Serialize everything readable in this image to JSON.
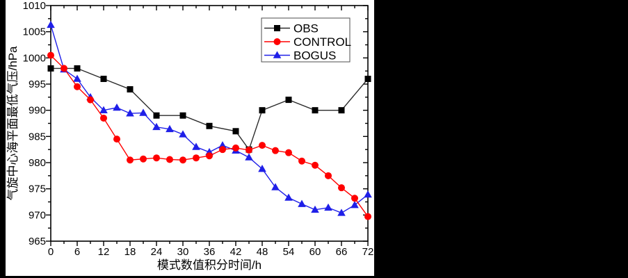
{
  "chart_data": {
    "type": "line",
    "title": "",
    "xlabel": "模式数值积分时间/h",
    "ylabel": "气旋中心海平面最低气压/hPa",
    "xlim": [
      0,
      72
    ],
    "ylim": [
      965,
      1010
    ],
    "x_major_step": 6,
    "x_minor_step": 3,
    "y_major_step": 5,
    "y_minor_step": 2.5,
    "grid": false,
    "legend_position": "top-center-inside",
    "legend_entries": [
      "OBS",
      "CONTROL",
      "BOGUS"
    ],
    "series": [
      {
        "name": "OBS",
        "marker": "square",
        "color": "#000000",
        "line_color": "#2b2b2b",
        "z": 1,
        "points": [
          [
            0,
            998
          ],
          [
            6,
            998
          ],
          [
            12,
            996
          ],
          [
            18,
            994
          ],
          [
            24,
            989
          ],
          [
            30,
            989
          ],
          [
            36,
            987
          ],
          [
            42,
            986
          ],
          [
            45,
            982.5
          ],
          [
            48,
            990
          ],
          [
            54,
            992
          ],
          [
            60,
            990
          ],
          [
            66,
            990
          ],
          [
            72,
            996
          ]
        ]
      },
      {
        "name": "CONTROL",
        "marker": "circle",
        "color": "#ff0000",
        "line_color": "#ff0000",
        "z": 3,
        "points": [
          [
            0,
            1000.5
          ],
          [
            3,
            998
          ],
          [
            6,
            994.5
          ],
          [
            9,
            992
          ],
          [
            12,
            988.5
          ],
          [
            15,
            984.5
          ],
          [
            18,
            980.5
          ],
          [
            21,
            980.7
          ],
          [
            24,
            980.9
          ],
          [
            27,
            980.6
          ],
          [
            30,
            980.5
          ],
          [
            33,
            980.9
          ],
          [
            36,
            981.3
          ],
          [
            39,
            982.5
          ],
          [
            42,
            982.8
          ],
          [
            45,
            982.4
          ],
          [
            48,
            983.3
          ],
          [
            51,
            982.3
          ],
          [
            54,
            981.9
          ],
          [
            57,
            980.3
          ],
          [
            60,
            979.5
          ],
          [
            63,
            977.5
          ],
          [
            66,
            975.2
          ],
          [
            69,
            973.2
          ],
          [
            72,
            969.7
          ]
        ]
      },
      {
        "name": "BOGUS",
        "marker": "triangle",
        "color": "#1f1fe8",
        "line_color": "#1f1fe8",
        "z": 2,
        "points": [
          [
            0,
            1006.3
          ],
          [
            3,
            997.8
          ],
          [
            6,
            996
          ],
          [
            9,
            992.5
          ],
          [
            12,
            990
          ],
          [
            15,
            990.5
          ],
          [
            18,
            989.4
          ],
          [
            21,
            989.5
          ],
          [
            24,
            986.8
          ],
          [
            27,
            986.4
          ],
          [
            30,
            985.4
          ],
          [
            33,
            983
          ],
          [
            36,
            982
          ],
          [
            39,
            983.3
          ],
          [
            42,
            982.3
          ],
          [
            45,
            981
          ],
          [
            48,
            978.8
          ],
          [
            51,
            975.3
          ],
          [
            54,
            973.3
          ],
          [
            57,
            972.1
          ],
          [
            60,
            971
          ],
          [
            63,
            971.4
          ],
          [
            66,
            970.4
          ],
          [
            69,
            971.9
          ],
          [
            72,
            973.9
          ]
        ]
      }
    ]
  }
}
